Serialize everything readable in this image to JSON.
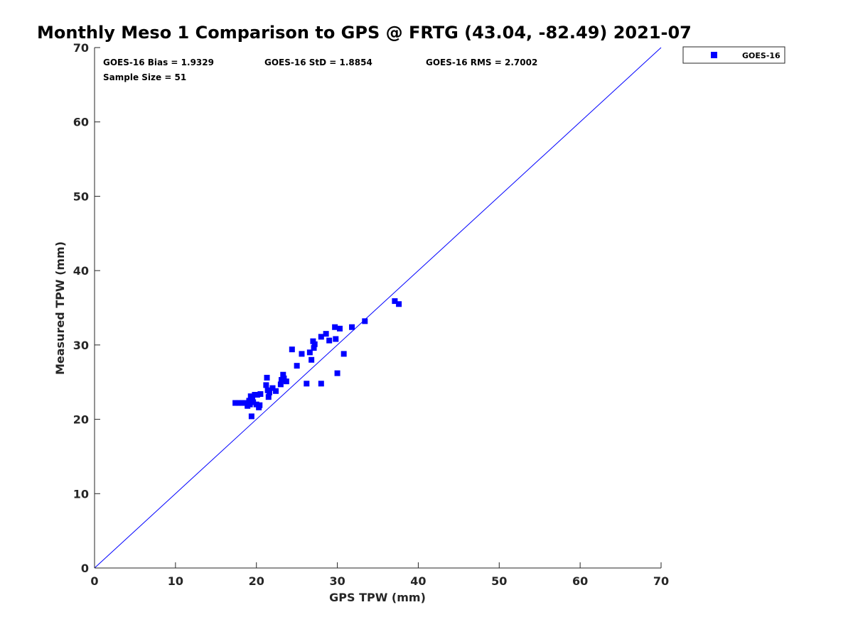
{
  "chart_data": {
    "type": "scatter",
    "title": "Monthly Meso 1 Comparison to GPS @ FRTG (43.04, -82.49) 2021-07",
    "xlabel": "GPS TPW (mm)",
    "ylabel": "Measured TPW (mm)",
    "xlim": [
      0,
      70
    ],
    "ylim": [
      0,
      70
    ],
    "xticks": [
      "0",
      "10",
      "20",
      "30",
      "40",
      "50",
      "60",
      "70"
    ],
    "yticks": [
      "0",
      "10",
      "20",
      "30",
      "40",
      "50",
      "60",
      "70"
    ],
    "grid": false,
    "legend_position": "top-right-outside",
    "reference_line": {
      "from": [
        0,
        0
      ],
      "to": [
        70,
        70
      ],
      "color": "#0000ff"
    },
    "stats": {
      "bias": "GOES-16 Bias = 1.9329",
      "std": "GOES-16 StD = 1.8854",
      "rms": "GOES-16 RMS = 2.7002",
      "sample_size": "Sample Size = 51"
    },
    "series": [
      {
        "name": "GOES-16",
        "color": "#0000ff",
        "marker": "square",
        "x": [
          17.4,
          17.8,
          18.2,
          18.6,
          18.9,
          19.1,
          19.3,
          19.5,
          19.6,
          19.8,
          20.0,
          20.1,
          20.3,
          20.4,
          20.5,
          19.2,
          19.4,
          21.2,
          21.3,
          21.4,
          21.5,
          21.6,
          22.0,
          22.4,
          23.0,
          23.1,
          23.3,
          23.4,
          23.7,
          24.4,
          25.0,
          25.6,
          26.2,
          26.6,
          26.8,
          27.0,
          27.1,
          27.2,
          28.0,
          28.6,
          29.0,
          29.7,
          29.8,
          30.0,
          30.3,
          30.8,
          31.8,
          33.4,
          28.0,
          37.1,
          37.6
        ],
        "y": [
          22.2,
          22.2,
          22.2,
          22.2,
          21.8,
          22.5,
          23.1,
          22.7,
          22.3,
          23.3,
          22.0,
          23.3,
          21.6,
          21.9,
          23.4,
          22.0,
          20.4,
          24.6,
          25.6,
          23.9,
          23.0,
          23.6,
          24.2,
          23.8,
          24.7,
          25.3,
          26.0,
          25.5,
          25.1,
          29.4,
          27.2,
          28.8,
          24.8,
          29.0,
          28.0,
          30.5,
          29.6,
          30.1,
          31.1,
          31.5,
          30.6,
          32.4,
          30.8,
          26.2,
          32.2,
          28.8,
          32.4,
          33.2,
          24.8,
          35.9,
          35.5
        ]
      }
    ]
  }
}
